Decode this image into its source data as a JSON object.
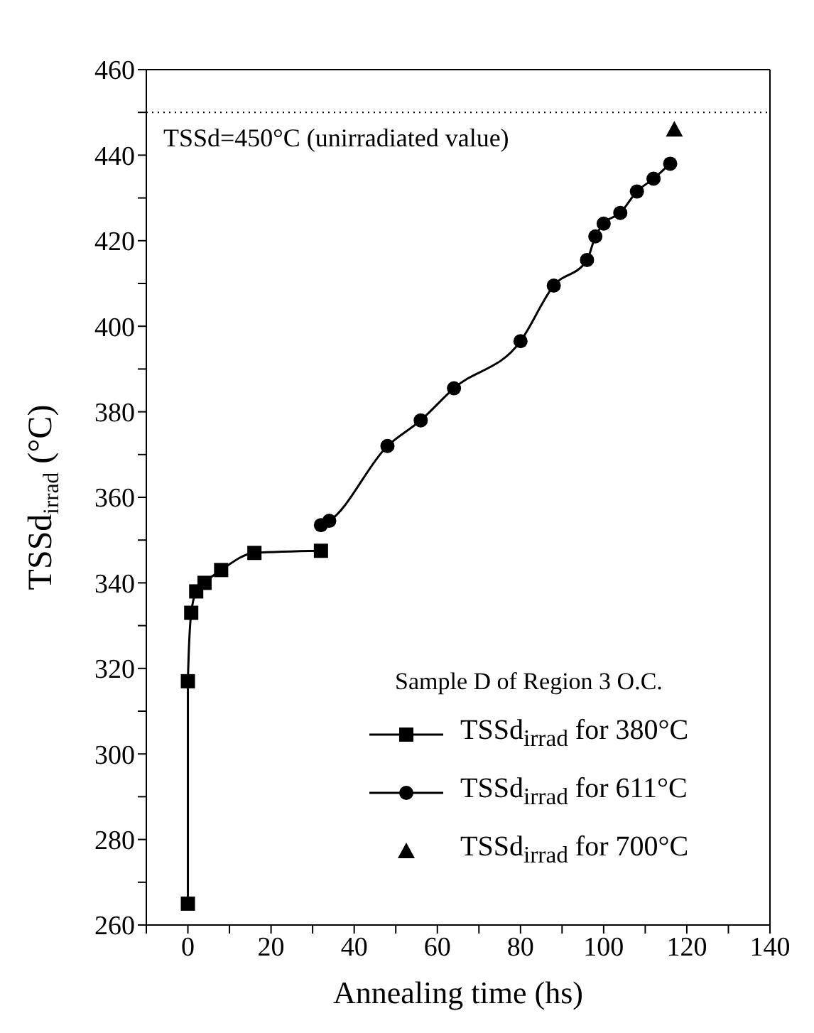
{
  "chart_data": {
    "type": "line",
    "xlabel": "Annealing time (hs)",
    "ylabel": "TSSd$_{irrad}$ (°C)",
    "legend_title": "Sample D of Region 3 O.C.",
    "legend": "bottom right",
    "grid": false,
    "xlim": [
      -10,
      140
    ],
    "xticks": [
      {
        "value": -10,
        "label": null
      },
      0,
      {
        "value": 10,
        "label": null
      },
      20,
      {
        "value": 30,
        "label": null
      },
      40,
      {
        "value": 50,
        "label": null
      },
      60,
      {
        "value": 70,
        "label": null
      },
      80,
      {
        "value": 90,
        "label": null
      },
      100,
      {
        "value": 110,
        "label": null
      },
      120,
      {
        "value": 130,
        "label": null
      },
      140
    ],
    "ylim": [
      260,
      460
    ],
    "yticks": [
      260,
      {
        "value": 270,
        "label": null
      },
      280,
      {
        "value": 290,
        "label": null
      },
      300,
      {
        "value": 310,
        "label": null
      },
      320,
      {
        "value": 330,
        "label": null
      },
      340,
      {
        "value": 350,
        "label": null
      },
      360,
      {
        "value": 370,
        "label": null
      },
      380,
      {
        "value": 390,
        "label": null
      },
      400,
      {
        "value": 410,
        "label": null
      },
      420,
      {
        "value": 430,
        "label": null
      },
      440,
      {
        "value": 450,
        "label": null
      },
      460
    ],
    "ref_lines": [
      {
        "axis": "y",
        "value": 450,
        "label": "TSSd=450°C (unirradiated value)",
        "color": "#000000",
        "line_style": "dotted"
      }
    ],
    "series": [
      {
        "name": "TSSd$_{irrad}$ for 380°C",
        "marker": "square",
        "color": "#000000",
        "x": [
          0,
          0,
          0.8,
          2,
          4,
          8,
          16,
          32
        ],
        "values": [
          265,
          317,
          333,
          338,
          340,
          343,
          347,
          347.5
        ]
      },
      {
        "name": "TSSd$_{irrad}$ for 611°C",
        "marker": "circle",
        "color": "#000000",
        "x": [
          32,
          34,
          48,
          56,
          64,
          80,
          88,
          96,
          98,
          100,
          104,
          108,
          112,
          116
        ],
        "values": [
          353.5,
          354.5,
          372,
          378,
          385.5,
          396.5,
          409.5,
          415.5,
          421,
          424,
          426.5,
          431.5,
          434.5,
          438
        ]
      },
      {
        "name": "TSSd$_{irrad}$ for 700°C",
        "type": "scatter",
        "marker": "triangle",
        "color": "#000000",
        "x": [
          117
        ],
        "values": [
          446
        ]
      }
    ]
  }
}
